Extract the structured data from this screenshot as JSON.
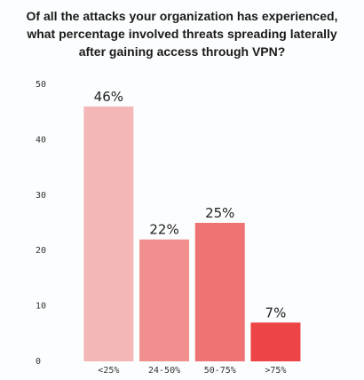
{
  "chart_data": {
    "type": "bar",
    "title": "Of all the attacks your organization has experienced, what percentage involved threats spreading laterally after gaining access through VPN?",
    "categories": [
      "<25%",
      "24-50%",
      "50-75%",
      ">75%"
    ],
    "values": [
      46,
      22,
      25,
      7
    ],
    "value_labels": [
      "46%",
      "22%",
      "25%",
      "7%"
    ],
    "colors": [
      "#f4b7b7",
      "#f18e8e",
      "#ef7373",
      "#ed4545"
    ],
    "ylim": [
      0,
      50
    ],
    "yticks": [
      0,
      10,
      20,
      30,
      40,
      50
    ],
    "grid": false
  }
}
